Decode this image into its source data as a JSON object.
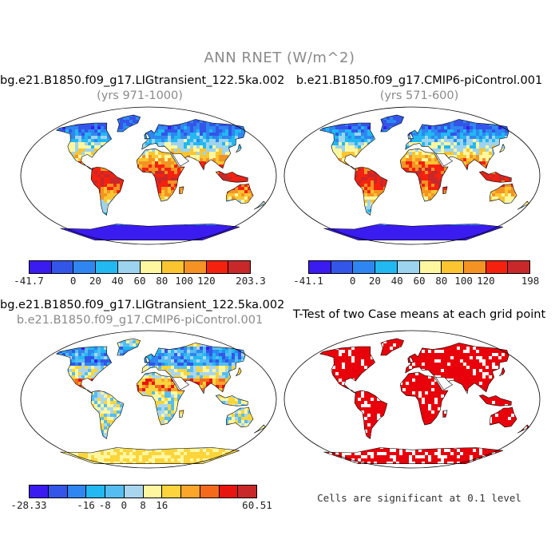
{
  "figure": {
    "title": "ANN RNET (W/m^2)"
  },
  "panels": [
    {
      "title": "bg.e21.B1850.f09_g17.LIGtransient_122.5ka.002",
      "subtitle": "(yrs 971-1000)",
      "colorbar": {
        "colors": [
          "#3b1cf0",
          "#3355e8",
          "#2f86f0",
          "#22b8f2",
          "#9dd3ee",
          "#fff7a0",
          "#fbc531",
          "#f49323",
          "#f5210f",
          "#c8282a"
        ],
        "ticks": [
          "-41.7",
          "0",
          "20",
          "40",
          "60",
          "80",
          "100",
          "120",
          "203.3"
        ]
      }
    },
    {
      "title": "b.e21.B1850.f09_g17.CMIP6-piControl.001",
      "subtitle": "(yrs 571-600)",
      "colorbar": {
        "colors": [
          "#3b1cf0",
          "#3355e8",
          "#2f86f0",
          "#22b8f2",
          "#9dd3ee",
          "#fff7a0",
          "#fbc531",
          "#f49323",
          "#f5210f",
          "#c8282a"
        ],
        "ticks": [
          "-41.1",
          "0",
          "20",
          "40",
          "60",
          "80",
          "100",
          "120",
          "198"
        ]
      }
    },
    {
      "title": "bg.e21.B1850.f09_g17.LIGtransient_122.5ka.002",
      "subtitle": "b.e21.B1850.f09_g17.CMIP6-piControl.001",
      "colorbar": {
        "colors": [
          "#3b1cf0",
          "#3355e8",
          "#2f86f0",
          "#22b8f2",
          "#56bdf0",
          "#a9d6ee",
          "#fff7a0",
          "#fcd53c",
          "#fba52a",
          "#f46a1d",
          "#e8140f",
          "#c8282a"
        ],
        "ticks": [
          "-28.33",
          "-16",
          "-8",
          "0",
          "8",
          "16",
          "60.51"
        ]
      }
    },
    {
      "title": "T-Test of two Case means at each grid point",
      "note": "Cells are significant at 0.1 level"
    }
  ]
}
